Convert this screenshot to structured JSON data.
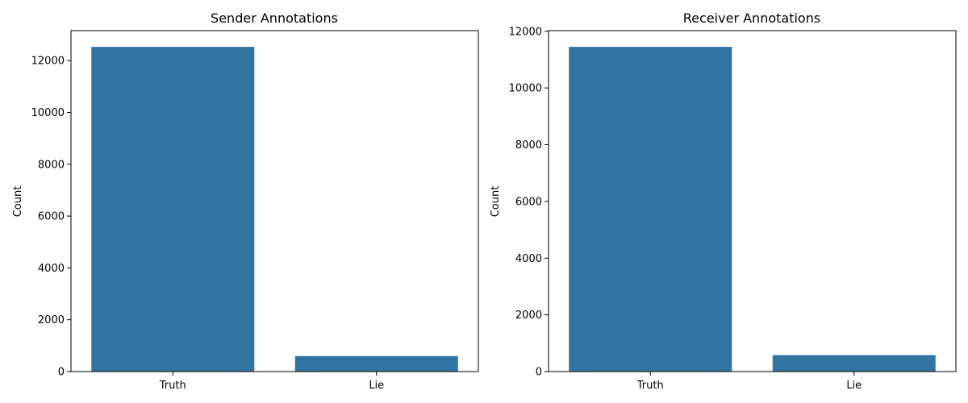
{
  "chart_data": [
    {
      "type": "bar",
      "title": "Sender Annotations",
      "xlabel": "",
      "ylabel": "Count",
      "categories": [
        "Truth",
        "Lie"
      ],
      "values": [
        12530,
        600
      ],
      "ylim": [
        0,
        13156
      ],
      "yticks": [
        0,
        2000,
        4000,
        6000,
        8000,
        10000,
        12000
      ],
      "grid": false,
      "bar_color": "#3274a1"
    },
    {
      "type": "bar",
      "title": "Receiver Annotations",
      "xlabel": "",
      "ylabel": "Count",
      "categories": [
        "Truth",
        "Lie"
      ],
      "values": [
        11450,
        580
      ],
      "ylim": [
        0,
        12022
      ],
      "yticks": [
        0,
        2000,
        4000,
        6000,
        8000,
        10000,
        12000
      ],
      "grid": false,
      "bar_color": "#3274a1"
    }
  ]
}
